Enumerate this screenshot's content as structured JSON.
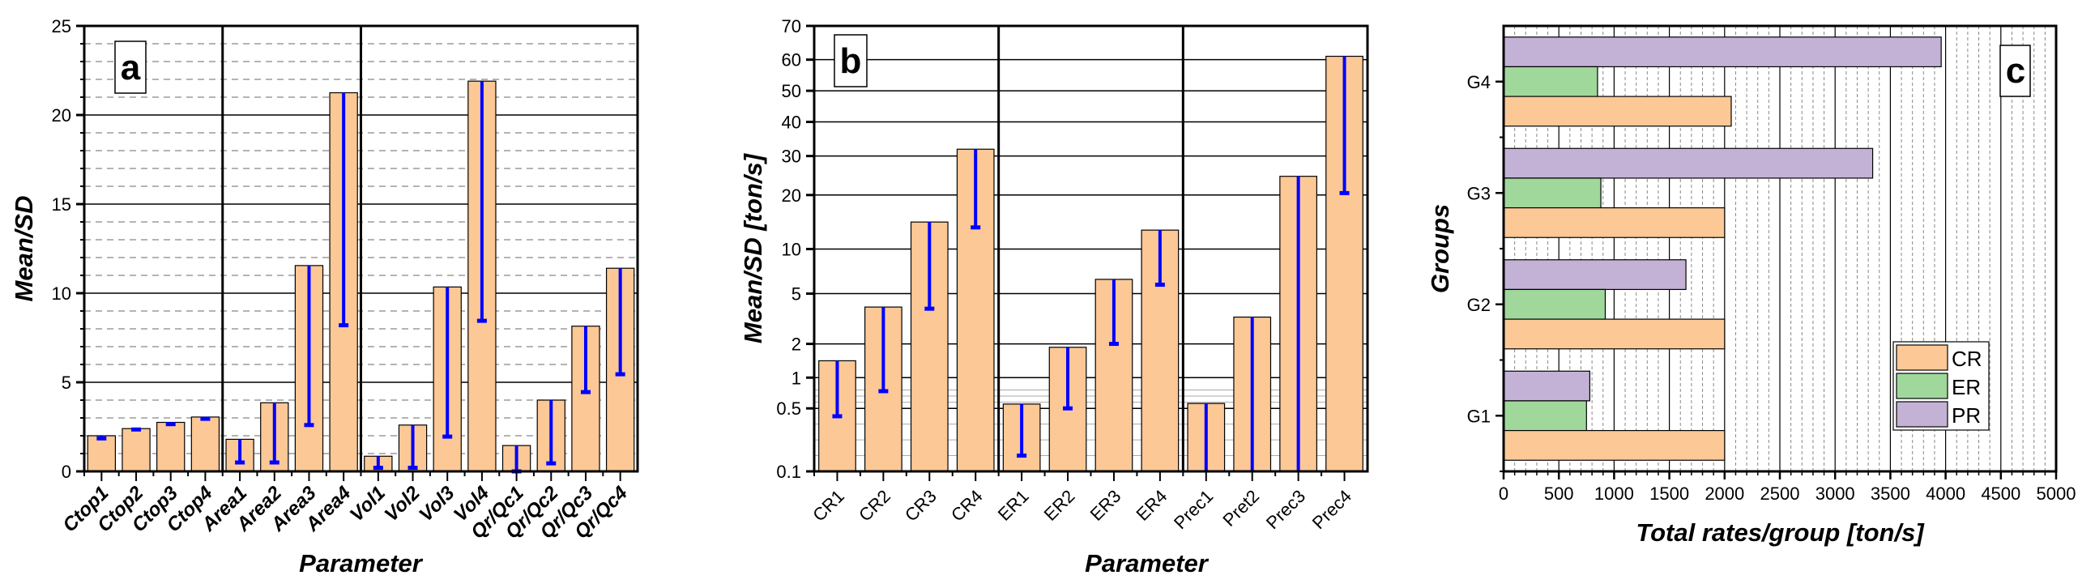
{
  "colors": {
    "bar": "#FBC896",
    "err": "#0000FF",
    "CR": "#FBC896",
    "ER": "#A0D89C",
    "PR": "#C3B2D6"
  },
  "chart_data": [
    {
      "type": "bar",
      "panel": "a",
      "xlabel": "Parameter",
      "ylabel": "Mean/SD",
      "ylim": [
        0,
        25
      ],
      "yticks": [
        "0",
        "5",
        "10",
        "15",
        "20",
        "25"
      ],
      "categories": [
        "Ctop1",
        "Ctop2",
        "Ctop3",
        "Ctop4",
        "Area1",
        "Area2",
        "Area3",
        "Area4",
        "Vol1",
        "Vol2",
        "Vol3",
        "Vol4",
        "Qr/Qc1",
        "Qr/Qc2",
        "Qr/Qc3",
        "Qr/Qc4"
      ],
      "series": [
        {
          "name": "Mean",
          "values": [
            2.0,
            2.4,
            2.75,
            3.05,
            1.8,
            3.85,
            11.55,
            21.25,
            0.85,
            2.6,
            10.35,
            21.9,
            1.45,
            4.0,
            8.15,
            11.4
          ]
        },
        {
          "name": "SD",
          "values": [
            1.85,
            2.35,
            2.65,
            2.95,
            0.5,
            0.5,
            2.6,
            8.2,
            0.2,
            0.2,
            1.95,
            8.45,
            0.0,
            0.45,
            4.45,
            5.45
          ]
        }
      ],
      "grid": true
    },
    {
      "type": "bar",
      "panel": "b",
      "xlabel": "Parameter",
      "ylabel": "Mean/SD [ton/s]",
      "yscale": "log",
      "ylim": [
        0.1,
        70
      ],
      "yticks": [
        "0.1",
        "0.5",
        "1",
        "2",
        "5",
        "10",
        "20",
        "30",
        "40",
        "50",
        "60",
        "70"
      ],
      "categories": [
        "CR1",
        "CR2",
        "CR3",
        "CR4",
        "ER1",
        "ER2",
        "ER3",
        "ER4",
        "Prec1",
        "Pret2",
        "Prec3",
        "Prec4"
      ],
      "series": [
        {
          "name": "Mean",
          "values": [
            1.5,
            4.2,
            15,
            32,
            0.57,
            1.9,
            6.6,
            13.5,
            0.58,
            3.6,
            24.8,
            61
          ]
        },
        {
          "name": "SD",
          "values": [
            0.45,
            0.78,
            4.1,
            14,
            0.2,
            0.5,
            2.0,
            6.0,
            0.1,
            0.1,
            0.1,
            20.5
          ]
        }
      ],
      "grid": true
    },
    {
      "type": "bar",
      "orientation": "horizontal",
      "panel": "c",
      "xlabel": "Total rates/group [ton/s]",
      "ylabel": "Groups",
      "xlim": [
        0,
        5000
      ],
      "xticks": [
        "0",
        "500",
        "1000",
        "1500",
        "2000",
        "2500",
        "3000",
        "3500",
        "4000",
        "4500",
        "5000"
      ],
      "categories": [
        "G1",
        "G2",
        "G3",
        "G4"
      ],
      "series": [
        {
          "name": "CR",
          "values": [
            2000,
            2000,
            2000,
            2060
          ]
        },
        {
          "name": "ER",
          "values": [
            750,
            920,
            880,
            850
          ]
        },
        {
          "name": "PR",
          "values": [
            780,
            1650,
            3340,
            3960
          ]
        }
      ],
      "legend": "bottom-right",
      "grid": true
    }
  ]
}
